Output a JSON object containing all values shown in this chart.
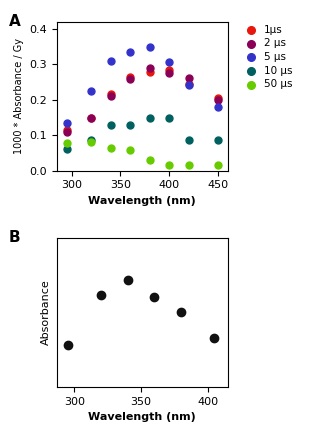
{
  "panel_A": {
    "title": "A",
    "xlabel": "Wavelength (nm)",
    "ylabel": "1000 * Absorbance / Gy",
    "xlim": [
      285,
      460
    ],
    "ylim": [
      0.0,
      0.42
    ],
    "xticks": [
      300,
      350,
      400,
      450
    ],
    "yticks": [
      0.0,
      0.1,
      0.2,
      0.3,
      0.4
    ],
    "series": [
      {
        "label": "1μs",
        "color": "#e8160c",
        "x": [
          295,
          320,
          340,
          360,
          380,
          400,
          420,
          450
        ],
        "y": [
          0.115,
          0.148,
          0.215,
          0.263,
          0.278,
          0.283,
          0.245,
          0.205
        ]
      },
      {
        "label": "2 μs",
        "color": "#8b0057",
        "x": [
          295,
          320,
          340,
          360,
          380,
          400,
          420,
          450
        ],
        "y": [
          0.11,
          0.148,
          0.21,
          0.258,
          0.29,
          0.275,
          0.26,
          0.2
        ]
      },
      {
        "label": "5 μs",
        "color": "#3333cc",
        "x": [
          295,
          320,
          340,
          360,
          380,
          400,
          420,
          450
        ],
        "y": [
          0.135,
          0.225,
          0.31,
          0.335,
          0.348,
          0.305,
          0.24,
          0.18
        ]
      },
      {
        "label": "10 μs",
        "color": "#006060",
        "x": [
          295,
          320,
          340,
          360,
          380,
          400,
          420,
          450
        ],
        "y": [
          0.06,
          0.085,
          0.13,
          0.128,
          0.148,
          0.148,
          0.085,
          0.085
        ]
      },
      {
        "label": "50 μs",
        "color": "#66cc00",
        "x": [
          295,
          320,
          340,
          360,
          380,
          400,
          420,
          450
        ],
        "y": [
          0.078,
          0.082,
          0.063,
          0.058,
          0.03,
          0.015,
          0.015,
          0.015
        ]
      }
    ]
  },
  "panel_B": {
    "title": "B",
    "xlabel": "Wavelength (nm)",
    "ylabel": "Absorbance",
    "xlim": [
      287,
      415
    ],
    "ylim": [
      0.0,
      1.0
    ],
    "xticks": [
      300,
      350,
      400
    ],
    "x": [
      295,
      320,
      340,
      360,
      380,
      405
    ],
    "y": [
      0.28,
      0.62,
      0.72,
      0.6,
      0.5,
      0.33
    ],
    "color": "#111111",
    "markersize": 6
  },
  "background_color": "#ffffff",
  "label_fontsize": 8,
  "tick_fontsize": 8,
  "legend_fontsize": 7.5,
  "marker_size": 5
}
